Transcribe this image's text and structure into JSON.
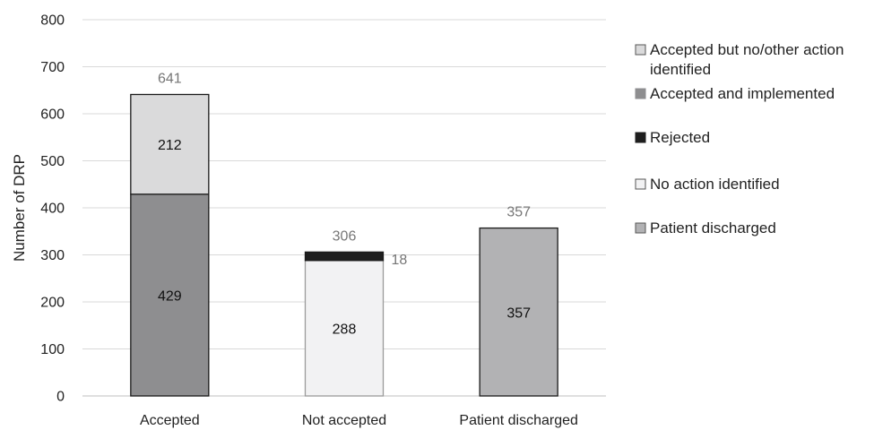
{
  "chart_data": {
    "type": "bar",
    "stacked": true,
    "categories": [
      "Accepted",
      "Not accepted",
      "Patient discharged"
    ],
    "ylabel": "Number of DRP",
    "xlabel": "",
    "ylim": [
      0,
      800
    ],
    "yticks": [
      0,
      100,
      200,
      300,
      400,
      500,
      600,
      700,
      800
    ],
    "grid": true,
    "legend_position": "right",
    "series": [
      {
        "name": "Accepted and implemented",
        "values": [
          429,
          0,
          0
        ],
        "color": "#8e8e90",
        "labels": [
          "429",
          "",
          ""
        ]
      },
      {
        "name": "Accepted but no/other action identified",
        "values": [
          212,
          0,
          0
        ],
        "color": "#dadadb",
        "labels": [
          "212",
          "",
          ""
        ]
      },
      {
        "name": "No action identified",
        "values": [
          0,
          288,
          0
        ],
        "color": "#f2f2f3",
        "labels": [
          "",
          "288",
          ""
        ]
      },
      {
        "name": "Rejected",
        "values": [
          0,
          18,
          0
        ],
        "color": "#1e1e1e",
        "labels": [
          "",
          "18",
          ""
        ]
      },
      {
        "name": "Patient discharged",
        "values": [
          0,
          0,
          357
        ],
        "color": "#b2b2b4",
        "labels": [
          "",
          "",
          "357"
        ]
      }
    ],
    "totals": [
      "641",
      "306",
      "357"
    ],
    "legend_order": [
      "Accepted but no/other action identified",
      "Accepted and implemented",
      "Rejected",
      "No action identified",
      "Patient discharged"
    ]
  }
}
